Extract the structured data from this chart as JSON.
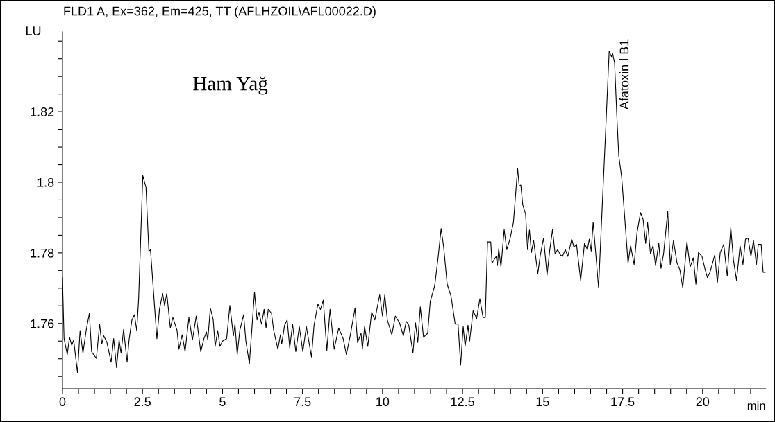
{
  "chart_data": {
    "type": "line",
    "title": "FLD1 A, Ex=362, Em=425, TT (AFLHZOIL\\AFL00022.D)",
    "xlabel": "min",
    "ylabel": "LU",
    "annotations": [
      "Ham Yağ",
      {
        "text": "Afatoxin l B1",
        "x": 17.19,
        "y": 1.8364
      }
    ],
    "xlim": [
      0,
      21.97
    ],
    "ylim": [
      1.7415,
      1.8426
    ],
    "xticks": [
      0,
      {
        "value": 0.5,
        "label": null
      },
      {
        "value": 1,
        "label": null
      },
      {
        "value": 1.5,
        "label": null
      },
      {
        "value": 2,
        "label": null
      },
      2.5,
      {
        "value": 3,
        "label": null
      },
      {
        "value": 3.5,
        "label": null
      },
      {
        "value": 4,
        "label": null
      },
      {
        "value": 4.5,
        "label": null
      },
      5,
      {
        "value": 5.5,
        "label": null
      },
      {
        "value": 6,
        "label": null
      },
      {
        "value": 6.5,
        "label": null
      },
      {
        "value": 7,
        "label": null
      },
      7.5,
      {
        "value": 8,
        "label": null
      },
      {
        "value": 8.5,
        "label": null
      },
      {
        "value": 9,
        "label": null
      },
      {
        "value": 9.5,
        "label": null
      },
      10,
      {
        "value": 10.5,
        "label": null
      },
      {
        "value": 11,
        "label": null
      },
      {
        "value": 11.5,
        "label": null
      },
      {
        "value": 12,
        "label": null
      },
      12.5,
      {
        "value": 13,
        "label": null
      },
      {
        "value": 13.5,
        "label": null
      },
      {
        "value": 14,
        "label": null
      },
      {
        "value": 14.5,
        "label": null
      },
      15,
      {
        "value": 15.5,
        "label": null
      },
      {
        "value": 16,
        "label": null
      },
      {
        "value": 16.5,
        "label": null
      },
      {
        "value": 17,
        "label": null
      },
      17.5,
      {
        "value": 18,
        "label": null
      },
      {
        "value": 18.5,
        "label": null
      },
      {
        "value": 19,
        "label": null
      },
      {
        "value": 19.5,
        "label": null
      },
      20,
      {
        "value": 20.5,
        "label": null
      },
      {
        "value": 21,
        "label": null
      },
      {
        "value": 21.5,
        "label": null
      }
    ],
    "yticks": [
      {
        "value": 1.745,
        "label": null
      },
      {
        "value": 1.75,
        "label": null
      },
      {
        "value": 1.755,
        "label": null
      },
      1.76,
      {
        "value": 1.765,
        "label": null
      },
      {
        "value": 1.77,
        "label": null
      },
      {
        "value": 1.775,
        "label": null
      },
      1.78,
      {
        "value": 1.785,
        "label": null
      },
      {
        "value": 1.79,
        "label": null
      },
      {
        "value": 1.795,
        "label": null
      },
      1.8,
      {
        "value": 1.805,
        "label": null
      },
      {
        "value": 1.81,
        "label": null
      },
      {
        "value": 1.815,
        "label": null
      },
      1.82,
      {
        "value": 1.825,
        "label": null
      },
      {
        "value": 1.83,
        "label": null
      },
      {
        "value": 1.835,
        "label": null
      },
      {
        "value": 1.84,
        "label": null
      }
    ],
    "grid": false,
    "legend": false,
    "series": [
      {
        "color": "#000000",
        "x": [
          0,
          0.05,
          0.15,
          0.22,
          0.29,
          0.35,
          0.47,
          0.55,
          0.64,
          0.74,
          0.84,
          0.91,
          1.06,
          1.16,
          1.23,
          1.29,
          1.39,
          1.52,
          1.6,
          1.69,
          1.77,
          1.83,
          1.91,
          2.02,
          2.08,
          2.17,
          2.25,
          2.32,
          2.38,
          2.51,
          2.61,
          2.7,
          2.75,
          2.86,
          2.95,
          3.03,
          3.13,
          3.19,
          3.26,
          3.37,
          3.45,
          3.58,
          3.64,
          3.74,
          3.83,
          3.95,
          4.06,
          4.18,
          4.32,
          4.42,
          4.5,
          4.54,
          4.62,
          4.71,
          4.77,
          4.85,
          4.92,
          5.0,
          5.13,
          5.23,
          5.34,
          5.39,
          5.46,
          5.54,
          5.66,
          5.73,
          5.84,
          6.0,
          6.08,
          6.14,
          6.22,
          6.3,
          6.36,
          6.43,
          6.53,
          6.6,
          6.73,
          6.81,
          6.85,
          6.94,
          7.02,
          7.1,
          7.19,
          7.29,
          7.4,
          7.51,
          7.62,
          7.78,
          7.86,
          7.98,
          8.06,
          8.15,
          8.26,
          8.36,
          8.49,
          8.63,
          8.77,
          8.87,
          8.99,
          9.14,
          9.22,
          9.33,
          9.37,
          9.44,
          9.54,
          9.66,
          9.76,
          9.91,
          10.0,
          10.07,
          10.15,
          10.29,
          10.4,
          10.53,
          10.65,
          10.74,
          10.82,
          10.95,
          11.03,
          11.1,
          11.18,
          11.28,
          11.41,
          11.49,
          11.63,
          11.74,
          11.83,
          11.91,
          12.02,
          12.14,
          12.27,
          12.36,
          12.44,
          12.52,
          12.58,
          12.67,
          12.72,
          12.83,
          12.94,
          13.04,
          13.14,
          13.21,
          13.28,
          13.38,
          13.42,
          13.55,
          13.59,
          13.63,
          13.7,
          13.8,
          13.88,
          13.98,
          14.09,
          14.22,
          14.27,
          14.32,
          14.38,
          14.47,
          14.53,
          14.59,
          14.65,
          14.72,
          14.85,
          14.93,
          15.03,
          15.14,
          15.22,
          15.31,
          15.39,
          15.47,
          15.56,
          15.62,
          15.71,
          15.79,
          15.91,
          15.98,
          16.06,
          16.19,
          16.31,
          16.4,
          16.46,
          16.52,
          16.58,
          16.75,
          16.86,
          16.98,
          17.08,
          17.15,
          17.19,
          17.25,
          17.32,
          17.38,
          17.47,
          17.57,
          17.67,
          17.75,
          17.86,
          17.95,
          18.06,
          18.14,
          18.22,
          18.28,
          18.37,
          18.45,
          18.53,
          18.63,
          18.7,
          18.78,
          18.91,
          18.99,
          19.09,
          19.2,
          19.29,
          19.38,
          19.51,
          19.61,
          19.71,
          19.79,
          19.87,
          19.98,
          20.08,
          20.15,
          20.23,
          20.38,
          20.46,
          20.55,
          20.66,
          20.77,
          20.88,
          20.96,
          21.06,
          21.17,
          21.26,
          21.34,
          21.42,
          21.51,
          21.59,
          21.68,
          21.74,
          21.83,
          21.89,
          21.97
        ],
        "values": [
          1.773,
          1.7557,
          1.7512,
          1.7561,
          1.7538,
          1.7553,
          1.746,
          1.758,
          1.7516,
          1.758,
          1.7629,
          1.752,
          1.7501,
          1.7598,
          1.7542,
          1.7565,
          1.7546,
          1.749,
          1.7557,
          1.7475,
          1.7553,
          1.7516,
          1.7583,
          1.749,
          1.7553,
          1.761,
          1.7625,
          1.758,
          1.767,
          1.8019,
          1.7985,
          1.7805,
          1.7809,
          1.767,
          1.7557,
          1.764,
          1.7685,
          1.7651,
          1.7685,
          1.7587,
          1.7617,
          1.758,
          1.7527,
          1.7568,
          1.752,
          1.7617,
          1.7553,
          1.7621,
          1.752,
          1.7557,
          1.7576,
          1.7553,
          1.7644,
          1.761,
          1.7535,
          1.758,
          1.7535,
          1.755,
          1.7557,
          1.7651,
          1.7565,
          1.7598,
          1.7512,
          1.758,
          1.7625,
          1.755,
          1.7486,
          1.7689,
          1.761,
          1.7632,
          1.7598,
          1.764,
          1.7587,
          1.764,
          1.7629,
          1.758,
          1.7527,
          1.7568,
          1.7542,
          1.7595,
          1.761,
          1.7531,
          1.7598,
          1.752,
          1.7591,
          1.752,
          1.7591,
          1.7505,
          1.7595,
          1.7655,
          1.764,
          1.7666,
          1.7523,
          1.764,
          1.7527,
          1.7587,
          1.7557,
          1.7512,
          1.7565,
          1.7644,
          1.7546,
          1.7572,
          1.7527,
          1.7591,
          1.7535,
          1.7632,
          1.761,
          1.7681,
          1.7621,
          1.7681,
          1.761,
          1.7568,
          1.7621,
          1.7602,
          1.7565,
          1.7606,
          1.7595,
          1.7516,
          1.7602,
          1.7546,
          1.7647,
          1.7561,
          1.7572,
          1.7662,
          1.7707,
          1.779,
          1.7869,
          1.7816,
          1.7711,
          1.7677,
          1.7598,
          1.7598,
          1.7482,
          1.7591,
          1.7535,
          1.7595,
          1.755,
          1.7636,
          1.7614,
          1.767,
          1.7617,
          1.7617,
          1.7831,
          1.7831,
          1.7771,
          1.779,
          1.7764,
          1.7812,
          1.776,
          1.7866,
          1.7809,
          1.7839,
          1.7887,
          1.8039,
          1.7989,
          1.7992,
          1.7936,
          1.791,
          1.7809,
          1.7865,
          1.7801,
          1.7835,
          1.7741,
          1.7794,
          1.7842,
          1.7737,
          1.7805,
          1.7866,
          1.7797,
          1.7809,
          1.7794,
          1.779,
          1.7809,
          1.779,
          1.7839,
          1.7816,
          1.7824,
          1.7722,
          1.7827,
          1.7809,
          1.7839,
          1.7805,
          1.7887,
          1.7701,
          1.7925,
          1.8165,
          1.8371,
          1.8356,
          1.8364,
          1.8338,
          1.8188,
          1.8075,
          1.8015,
          1.7895,
          1.7771,
          1.782,
          1.7767,
          1.7857,
          1.7914,
          1.7895,
          1.7827,
          1.7887,
          1.7797,
          1.782,
          1.7764,
          1.7827,
          1.7756,
          1.7797,
          1.7917,
          1.7767,
          1.7835,
          1.7771,
          1.7752,
          1.7701,
          1.7831,
          1.776,
          1.7786,
          1.7711,
          1.7801,
          1.779,
          1.7752,
          1.773,
          1.7745,
          1.7794,
          1.7715,
          1.7801,
          1.7824,
          1.7734,
          1.7872,
          1.7782,
          1.7722,
          1.782,
          1.7767,
          1.7839,
          1.7842,
          1.779,
          1.7835,
          1.7767,
          1.7824,
          1.7824,
          1.7745,
          1.7745
        ]
      }
    ]
  }
}
